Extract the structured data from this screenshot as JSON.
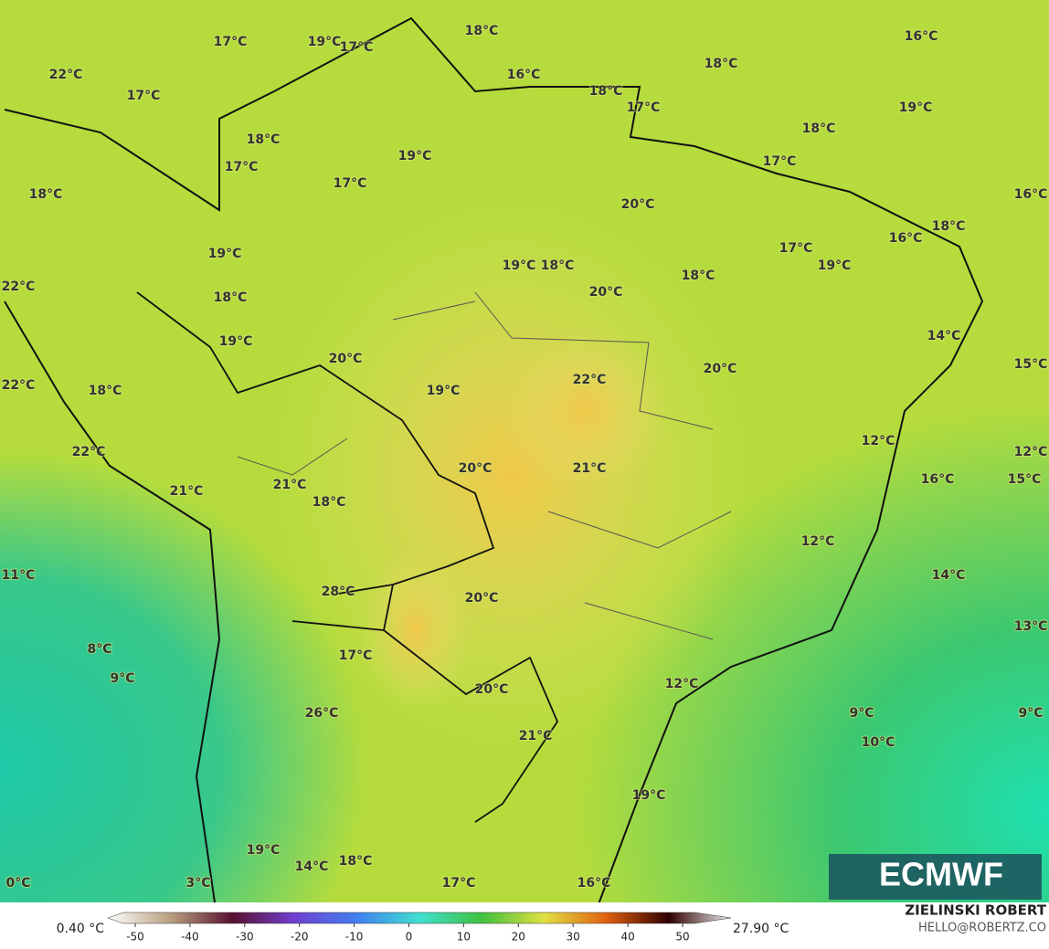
{
  "map": {
    "labels": [
      "17°C",
      "19°C",
      "17°C",
      "18°C",
      "16°C",
      "18°C",
      "16°C",
      "22°C",
      "18°C",
      "17°C",
      "17°C",
      "19°C",
      "18°C",
      "18°C",
      "19°C",
      "17°C",
      "17°C",
      "17°C",
      "18°C",
      "16°C",
      "20°C",
      "18°C",
      "16°C",
      "17°C",
      "19°C",
      "19°C",
      "18°C",
      "19°C",
      "18°C",
      "22°C",
      "18°C",
      "20°C",
      "14°C",
      "19°C",
      "20°C",
      "15°C",
      "20°C",
      "22°C",
      "22°C",
      "18°C",
      "19°C",
      "12°C",
      "22°C",
      "12°C",
      "20°C",
      "21°C",
      "16°C",
      "15°C",
      "21°C",
      "21°C",
      "18°C",
      "12°C",
      "11°C",
      "14°C",
      "28°C",
      "20°C",
      "13°C",
      "8°C",
      "17°C",
      "9°C",
      "12°C",
      "20°C",
      "26°C",
      "9°C",
      "9°C",
      "21°C",
      "10°C",
      "19°C",
      "19°C",
      "18°C",
      "14°C",
      "0°C",
      "3°C",
      "17°C",
      "16°C"
    ]
  },
  "colorbar": {
    "min_label": "0.40 °C",
    "max_label": "27.90 °C",
    "ticks": [
      -50,
      -40,
      -30,
      -20,
      -10,
      0,
      10,
      20,
      30,
      40,
      50
    ]
  },
  "logo": "ECMWF",
  "credit": {
    "name": "ZIELINSKI ROBERT",
    "contact": "HELLO@ROBERTZ.CO"
  }
}
